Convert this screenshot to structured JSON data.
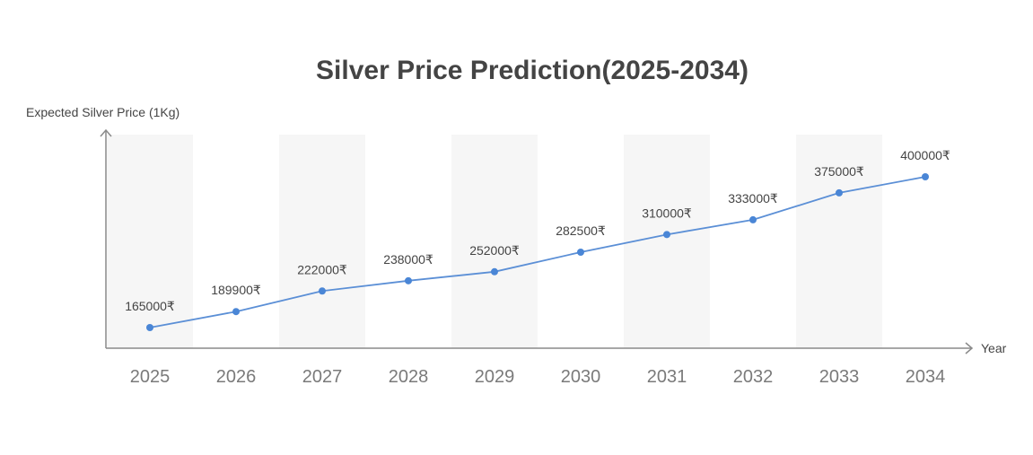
{
  "chart_data": {
    "type": "line",
    "title": "Silver Price Prediction(2025-2034)",
    "ylabel": "Expected Silver Price (1Kg)",
    "xlabel": "Year",
    "categories": [
      "2025",
      "2026",
      "2027",
      "2028",
      "2029",
      "2030",
      "2031",
      "2032",
      "2033",
      "2034"
    ],
    "values": [
      165000,
      189900,
      222000,
      238000,
      252000,
      282500,
      310000,
      333000,
      375000,
      400000
    ],
    "data_labels": [
      "165000₹",
      "189900₹",
      "222000₹",
      "238000₹",
      "252000₹",
      "282500₹",
      "310000₹",
      "333000₹",
      "375000₹",
      "400000₹"
    ],
    "grid": false,
    "colors": {
      "line": "#5b8fd6",
      "point": "#4a86d6",
      "band": "#f6f6f6",
      "axis": "#8a8a8a"
    }
  }
}
